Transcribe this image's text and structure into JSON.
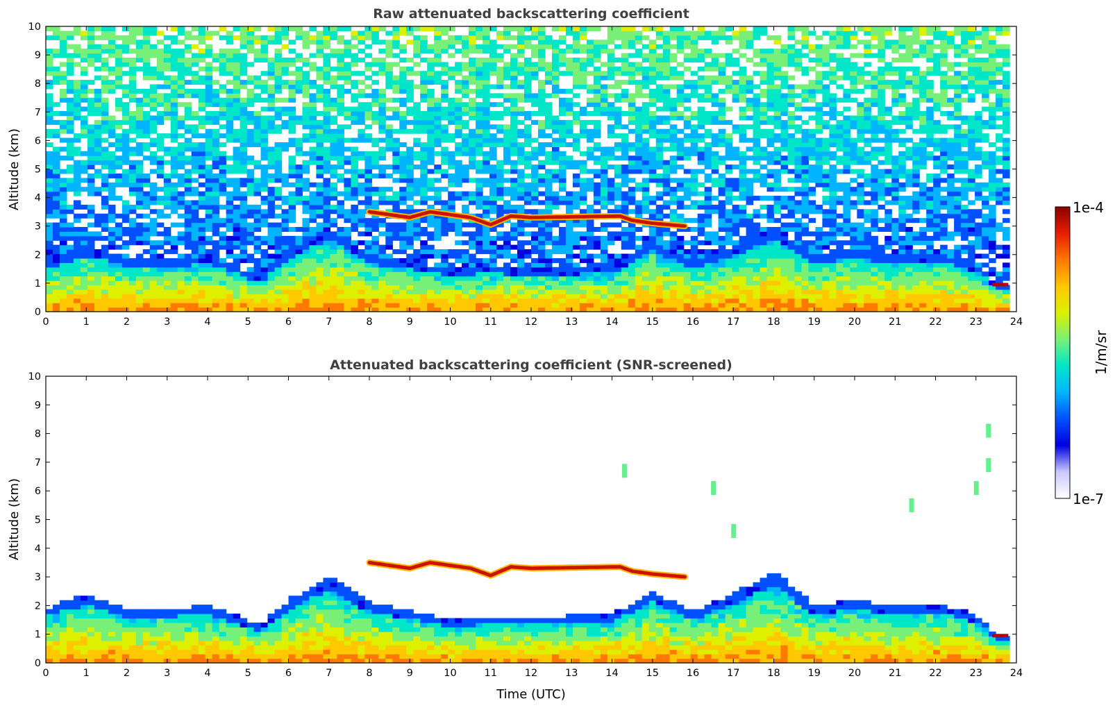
{
  "chart_data": [
    {
      "type": "heatmap",
      "title": "Raw attenuated backscattering coefficient",
      "xlabel": "",
      "ylabel": "Altitude (km)",
      "xlim": [
        0,
        24
      ],
      "ylim": [
        0,
        10
      ],
      "xticks": [
        "0",
        "1",
        "2",
        "3",
        "4",
        "5",
        "6",
        "7",
        "8",
        "9",
        "10",
        "11",
        "12",
        "13",
        "14",
        "15",
        "16",
        "17",
        "18",
        "19",
        "20",
        "21",
        "22",
        "23",
        "24"
      ],
      "yticks": [
        "0",
        "1",
        "2",
        "3",
        "4",
        "5",
        "6",
        "7",
        "8",
        "9",
        "10"
      ],
      "screened": false,
      "features": {
        "boundary_layer_top_km": [
          [
            0,
            1.7
          ],
          [
            1,
            2.3
          ],
          [
            2,
            1.9
          ],
          [
            3,
            1.8
          ],
          [
            4,
            2.0
          ],
          [
            5,
            1.4
          ],
          [
            5.3,
            1.2
          ],
          [
            6,
            2.2
          ],
          [
            7,
            3.0
          ],
          [
            8,
            2.0
          ],
          [
            10,
            1.5
          ],
          [
            11,
            1.6
          ],
          [
            12,
            1.5
          ],
          [
            14,
            1.6
          ],
          [
            15,
            2.5
          ],
          [
            16,
            1.8
          ],
          [
            17,
            2.3
          ],
          [
            18,
            3.0
          ],
          [
            19,
            2.0
          ],
          [
            20,
            2.2
          ],
          [
            21,
            2.0
          ],
          [
            22,
            2.1
          ],
          [
            23,
            1.7
          ],
          [
            23.5,
            1.0
          ]
        ],
        "cloud_layer": {
          "start_hour": 8.0,
          "end_hour": 15.8,
          "altitude_km": [
            [
              8.0,
              3.5
            ],
            [
              9.0,
              3.3
            ],
            [
              9.5,
              3.5
            ],
            [
              10.5,
              3.3
            ],
            [
              11.0,
              3.05
            ],
            [
              11.5,
              3.35
            ],
            [
              12.0,
              3.3
            ],
            [
              14.2,
              3.35
            ],
            [
              14.5,
              3.2
            ],
            [
              15.0,
              3.1
            ],
            [
              15.8,
              3.0
            ]
          ]
        },
        "low_cloud": {
          "start_hour": 23.4,
          "end_hour": 23.8,
          "altitude_km": 0.95
        },
        "noise_top_km": 10
      }
    },
    {
      "type": "heatmap",
      "title": "Attenuated backscattering coefficient (SNR-screened)",
      "xlabel": "Time (UTC)",
      "ylabel": "Altitude (km)",
      "xlim": [
        0,
        24
      ],
      "ylim": [
        0,
        10
      ],
      "xticks": [
        "0",
        "1",
        "2",
        "3",
        "4",
        "5",
        "6",
        "7",
        "8",
        "9",
        "10",
        "11",
        "12",
        "13",
        "14",
        "15",
        "16",
        "17",
        "18",
        "19",
        "20",
        "21",
        "22",
        "23",
        "24"
      ],
      "yticks": [
        "0",
        "1",
        "2",
        "3",
        "4",
        "5",
        "6",
        "7",
        "8",
        "9",
        "10"
      ],
      "screened": true,
      "features": {
        "boundary_layer_top_km": [
          [
            0,
            1.9
          ],
          [
            1,
            2.4
          ],
          [
            2,
            1.9
          ],
          [
            3,
            1.9
          ],
          [
            4,
            2.0
          ],
          [
            5,
            1.5
          ],
          [
            5.3,
            1.3
          ],
          [
            6,
            2.2
          ],
          [
            7,
            3.0
          ],
          [
            8,
            2.1
          ],
          [
            10,
            1.5
          ],
          [
            11,
            1.6
          ],
          [
            12,
            1.6
          ],
          [
            14,
            1.7
          ],
          [
            15,
            2.5
          ],
          [
            16,
            1.8
          ],
          [
            17,
            2.4
          ],
          [
            18,
            3.2
          ],
          [
            19,
            2.0
          ],
          [
            20,
            2.2
          ],
          [
            21,
            2.0
          ],
          [
            22,
            2.1
          ],
          [
            23,
            1.7
          ],
          [
            23.5,
            1.0
          ]
        ],
        "cloud_layer": {
          "start_hour": 8.0,
          "end_hour": 15.8,
          "altitude_km": [
            [
              8.0,
              3.5
            ],
            [
              9.0,
              3.3
            ],
            [
              9.5,
              3.5
            ],
            [
              10.5,
              3.3
            ],
            [
              11.0,
              3.05
            ],
            [
              11.5,
              3.35
            ],
            [
              12.0,
              3.3
            ],
            [
              14.2,
              3.35
            ],
            [
              14.5,
              3.2
            ],
            [
              15.0,
              3.1
            ],
            [
              15.8,
              3.0
            ]
          ]
        },
        "low_cloud": {
          "start_hour": 23.4,
          "end_hour": 23.8,
          "altitude_km": 0.95
        },
        "isolated_patches_km": [
          [
            14.3,
            6.7
          ],
          [
            16.5,
            6.1
          ],
          [
            17.0,
            4.6
          ],
          [
            21.4,
            5.5
          ],
          [
            23.0,
            6.1
          ],
          [
            23.3,
            6.9
          ],
          [
            23.3,
            8.1
          ]
        ]
      }
    }
  ],
  "colorbar": {
    "label": "1/m/sr",
    "max_label": "1e-4",
    "min_label": "1e-7",
    "scale": "log",
    "colors": [
      "#ffffff",
      "#c8c8ff",
      "#0000e0",
      "#0050ff",
      "#00b4ff",
      "#00e6c8",
      "#78f078",
      "#dcf000",
      "#ffc800",
      "#ff7800",
      "#e61e00",
      "#8c0000"
    ]
  }
}
